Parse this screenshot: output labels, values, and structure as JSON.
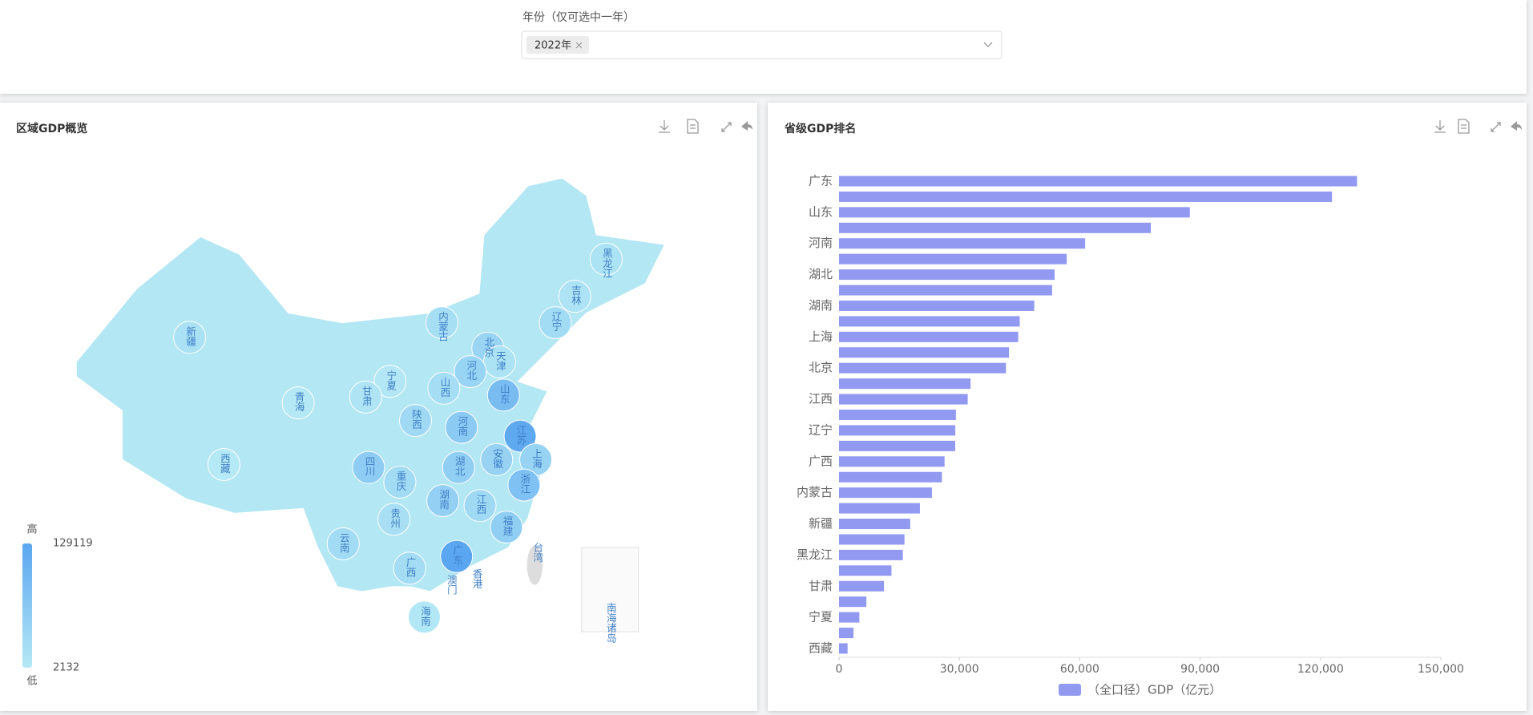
{
  "filter": {
    "label": "年份（仅可选中一年）",
    "selected": "2022年"
  },
  "map_panel": {
    "title": "区域GDP概览",
    "visual_map": {
      "max": 129119,
      "min": 2132,
      "high_label": "高",
      "low_label": "低"
    },
    "regions": [
      {
        "name": "黑龙江",
        "value": 15901
      },
      {
        "name": "吉林",
        "value": 13070
      },
      {
        "name": "辽宁",
        "value": 28975
      },
      {
        "name": "内蒙古",
        "value": 23159
      },
      {
        "name": "北京",
        "value": 41611
      },
      {
        "name": "天津",
        "value": 16311
      },
      {
        "name": "河北",
        "value": 42370
      },
      {
        "name": "山西",
        "value": 25643
      },
      {
        "name": "山东",
        "value": 87435
      },
      {
        "name": "宁夏",
        "value": 5070
      },
      {
        "name": "甘肃",
        "value": 11201
      },
      {
        "name": "青海",
        "value": 3610
      },
      {
        "name": "新疆",
        "value": 17741
      },
      {
        "name": "西藏",
        "value": 2132
      },
      {
        "name": "陕西",
        "value": 32773
      },
      {
        "name": "河南",
        "value": 61345
      },
      {
        "name": "江苏",
        "value": 122876
      },
      {
        "name": "上海",
        "value": 44653
      },
      {
        "name": "安徽",
        "value": 45045
      },
      {
        "name": "湖北",
        "value": 53735
      },
      {
        "name": "四川",
        "value": 56750
      },
      {
        "name": "重庆",
        "value": 29129
      },
      {
        "name": "浙江",
        "value": 77715
      },
      {
        "name": "湖南",
        "value": 48670
      },
      {
        "name": "江西",
        "value": 32075
      },
      {
        "name": "贵州",
        "value": 20165
      },
      {
        "name": "福建",
        "value": 53110
      },
      {
        "name": "云南",
        "value": 28954
      },
      {
        "name": "广西",
        "value": 26301
      },
      {
        "name": "广东",
        "value": 129119
      },
      {
        "name": "台湾",
        "value": null
      },
      {
        "name": "澳门",
        "value": null
      },
      {
        "name": "香港",
        "value": null
      },
      {
        "name": "海南",
        "value": 6818
      },
      {
        "name": "南海诸岛",
        "value": null
      }
    ]
  },
  "chart_data": {
    "type": "bar",
    "orientation": "horizontal",
    "title": "省级GDP排名",
    "categories": [
      "广东",
      null,
      "山东",
      null,
      "河南",
      null,
      "湖北",
      null,
      "湖南",
      null,
      "上海",
      null,
      "北京",
      null,
      "江西",
      null,
      "辽宁",
      null,
      "广西",
      null,
      "内蒙古",
      null,
      "新疆",
      null,
      "黑龙江",
      null,
      "甘肃",
      null,
      "宁夏",
      null,
      "西藏"
    ],
    "series": [
      {
        "name": "（全口径）GDP（亿元）",
        "color": "#9199f1",
        "values": [
          129119,
          122876,
          87435,
          77715,
          61345,
          56750,
          53735,
          53110,
          48670,
          45045,
          44653,
          42370,
          41611,
          32773,
          32075,
          29129,
          28975,
          28954,
          26301,
          25643,
          23159,
          20165,
          17741,
          16311,
          15901,
          13070,
          11201,
          6818,
          5070,
          3610,
          2132
        ]
      }
    ],
    "xlim": [
      0,
      150000
    ],
    "xticks": [
      0,
      {
        "value": 30000,
        "label": "30,000"
      },
      {
        "value": 60000,
        "label": "60,000"
      },
      {
        "value": 90000,
        "label": "90,000"
      },
      {
        "value": 120000,
        "label": "120,000"
      },
      {
        "value": 150000,
        "label": "150,000"
      }
    ]
  }
}
